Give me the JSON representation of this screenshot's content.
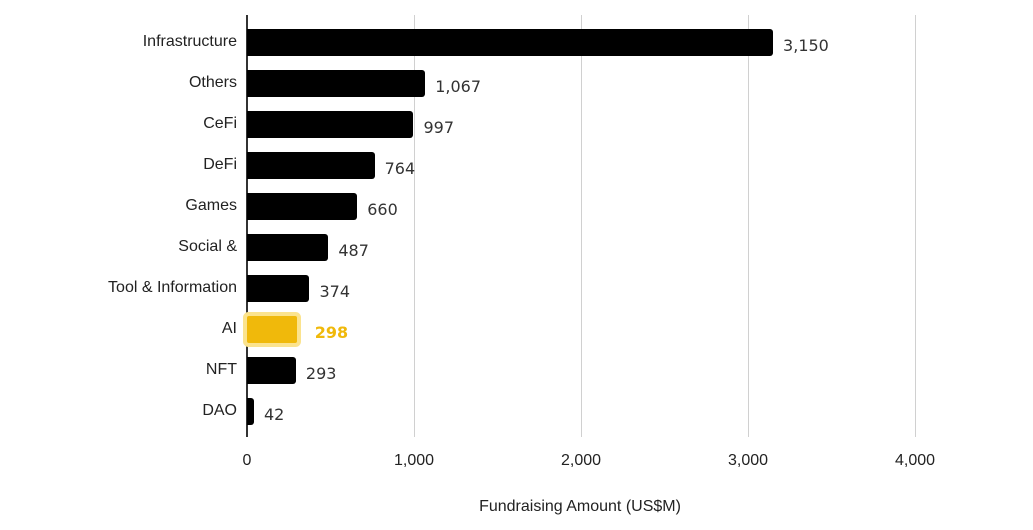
{
  "chart_data": {
    "type": "bar",
    "orientation": "horizontal",
    "title": "",
    "xlabel": "Fundraising Amount (US$M)",
    "ylabel": "",
    "xlim": [
      0,
      4000
    ],
    "grid": true,
    "legend": null,
    "categories": [
      "Infrastructure",
      "Others",
      "CeFi",
      "DeFi",
      "Games",
      "Social &",
      "Tool & Information",
      "AI",
      "NFT",
      "DAO"
    ],
    "values": [
      3150,
      1067,
      997,
      764,
      660,
      487,
      374,
      298,
      293,
      42
    ],
    "value_labels": [
      "3,150",
      "1,067",
      "997",
      "764",
      "660",
      "487",
      "374",
      "298",
      "293",
      "42"
    ],
    "highlighted_category": "AI",
    "x_ticks": [
      "0",
      "1,000",
      "2,000",
      "3,000",
      "4,000"
    ],
    "x_tick_values": [
      0,
      1000,
      2000,
      3000,
      4000
    ],
    "colors": {
      "bar": "#000000",
      "highlight": "#f0b90b",
      "highlight_glow": "#fbe38e",
      "grid": "#d0d0d0"
    }
  }
}
